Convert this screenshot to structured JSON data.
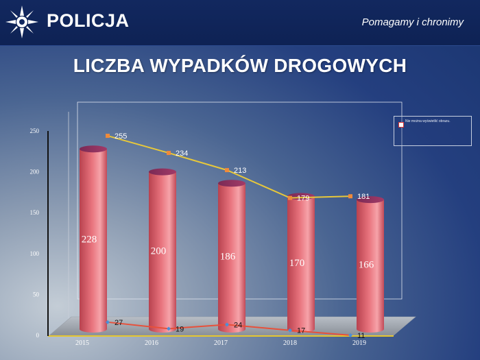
{
  "header": {
    "brand": "POLICJA",
    "slogan": "Pomagamy i chronimy",
    "logo_icon": "police-star-icon"
  },
  "page_title": "LICZBA WYPADKÓW DROGOWYCH",
  "legend": {
    "placeholder_text": "Nie można wyświetlić obrazu."
  },
  "colors": {
    "bar": "#e8737d",
    "upper_line": "#e8c83a",
    "upper_marker": "#f08a3a",
    "lower_line": "#e8503a",
    "lower_marker": "#4a8fd8"
  },
  "chart_data": {
    "type": "bar",
    "categories": [
      "2015",
      "2016",
      "2017",
      "2018",
      "2019"
    ],
    "ylim": [
      0,
      250
    ],
    "yticks": [
      "0",
      "50",
      "100",
      "150",
      "200",
      "250"
    ],
    "series": [
      {
        "kind": "bar",
        "values": [
          228,
          200,
          186,
          170,
          166
        ]
      },
      {
        "kind": "line",
        "values": [
          255,
          234,
          213,
          179,
          181
        ]
      },
      {
        "kind": "line",
        "values": [
          27,
          19,
          24,
          17,
          11
        ]
      }
    ]
  }
}
